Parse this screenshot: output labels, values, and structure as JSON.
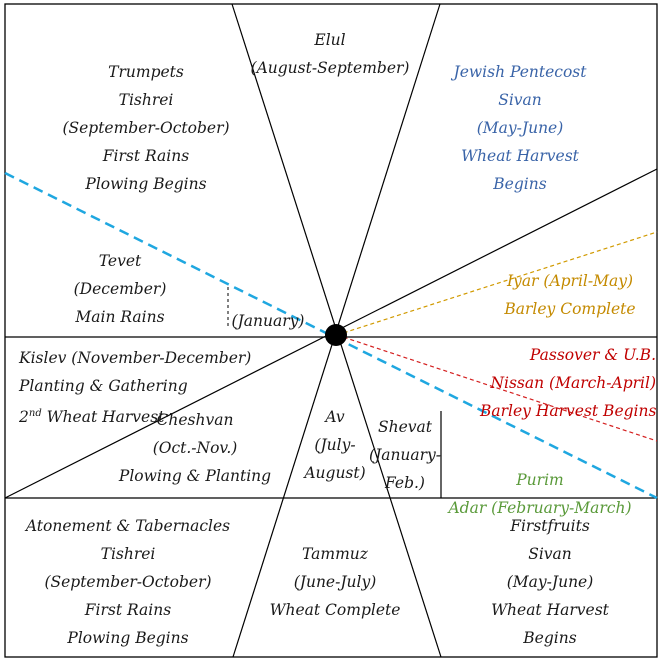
{
  "colors": {
    "line": "#000000",
    "blue_text": "#3a64a8",
    "gold_text": "#c48a00",
    "red_text": "#c00000",
    "green_text": "#5a9a3a",
    "blue_dash": "#1fa7e0",
    "gold_dash": "#d19a00",
    "red_dash": "#d41f1f"
  },
  "sections": {
    "elul": {
      "lines": [
        "Elul",
        "(August-September)"
      ]
    },
    "trumpets": {
      "lines": [
        "Trumpets",
        "Tishrei",
        "(September-October)",
        "First Rains",
        "Plowing Begins"
      ]
    },
    "pentecost": {
      "lines": [
        "Jewish Pentecost",
        "Sivan",
        "(May-June)",
        "Wheat Harvest",
        "Begins"
      ]
    },
    "tevet": {
      "lines": [
        "Tevet",
        "(December)",
        "Main Rains"
      ]
    },
    "january": {
      "text": "(January)"
    },
    "iyar": {
      "lines": [
        "Iyar (April-May)",
        "Barley Complete"
      ]
    },
    "kislev": {
      "line1": "Kislev (November-December)",
      "line2": "Planting & Gathering",
      "line3_sup": "nd",
      "line3_num": "2",
      "line3_rest": " Wheat Harvest"
    },
    "passover": {
      "lines": [
        "Passover & U.B.",
        "Nissan (March-April)",
        "Barley Harvest Begins"
      ]
    },
    "cheshvan": {
      "lines": [
        "Cheshvan",
        "(Oct.-Nov.)",
        "Plowing & Planting"
      ]
    },
    "av": {
      "lines": [
        "Av",
        "(July-",
        "August)"
      ]
    },
    "shevat": {
      "lines": [
        "Shevat",
        "(January-",
        "Feb.)"
      ]
    },
    "purim": {
      "lines": [
        "Purim",
        "Adar (February-March)"
      ]
    },
    "atonement": {
      "lines": [
        "Atonement & Tabernacles",
        "Tishrei",
        "(September-October)",
        "First Rains",
        "Plowing Begins"
      ]
    },
    "tammuz": {
      "lines": [
        "Tammuz",
        "(June-July)",
        "Wheat Complete"
      ]
    },
    "firstfruits": {
      "lines": [
        "Firstfruits",
        "Sivan",
        "(May-June)",
        "Wheat Harvest",
        "Begins"
      ]
    }
  }
}
